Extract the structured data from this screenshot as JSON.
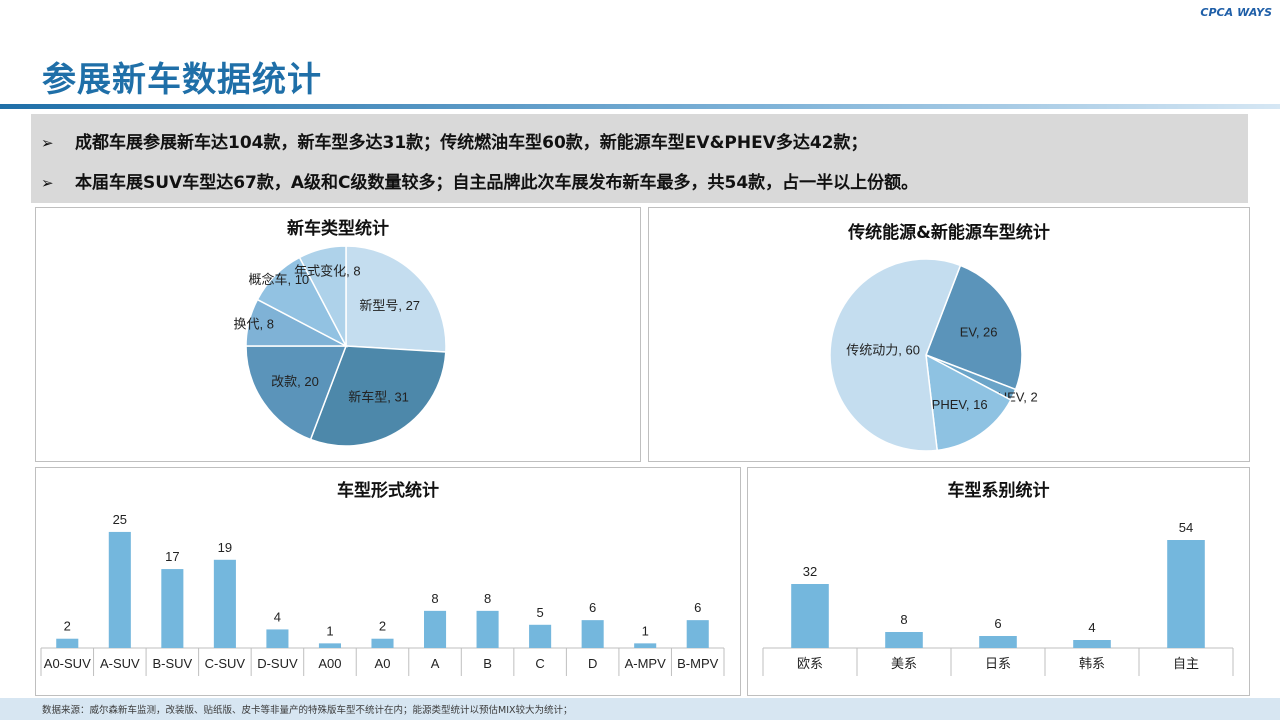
{
  "logo": {
    "cpca": "CPCA",
    "ways": "WAYS"
  },
  "page_title": "参展新车数据统计",
  "summary": [
    "成都车展参展新车达104款，新车型多达31款；传统燃油车型60款，新能源车型EV&PHEV多达42款；",
    "本届车展SUV车型达67款，A级和C级数量较多；自主品牌此次车展发布新车最多，共54款，占一半以上份额。"
  ],
  "footer": "数据来源：威尔森新车监测，改装版、贴纸版、皮卡等非量产的特殊版车型不统计在内；能源类型统计以预估MIX较大为统计；",
  "colors": {
    "title": "#1f6fa8",
    "bar": "#74b7dd",
    "pie": [
      "#c4ddef",
      "#4d88aa",
      "#5b94ba",
      "#7fb2d6",
      "#92c2e2",
      "#aed2ea"
    ]
  },
  "chart_data": [
    {
      "type": "pie",
      "title": "新车类型统计",
      "labels": [
        "新型号",
        "新车型",
        "改款",
        "换代",
        "概念车",
        "年式变化"
      ],
      "values": [
        27,
        31,
        20,
        8,
        10,
        8
      ]
    },
    {
      "type": "pie",
      "title": "传统能源&新能源车型统计",
      "labels": [
        "EV",
        "HEV",
        "PHEV",
        "传统动力"
      ],
      "values": [
        26,
        2,
        16,
        60
      ]
    },
    {
      "type": "bar",
      "title": "车型形式统计",
      "categories": [
        "A0-SUV",
        "A-SUV",
        "B-SUV",
        "C-SUV",
        "D-SUV",
        "A00",
        "A0",
        "A",
        "B",
        "C",
        "D",
        "A-MPV",
        "B-MPV"
      ],
      "values": [
        2,
        25,
        17,
        19,
        4,
        1,
        2,
        8,
        8,
        5,
        6,
        1,
        6
      ],
      "ylim": [
        0,
        28
      ],
      "data_labels": true,
      "grid": false
    },
    {
      "type": "bar",
      "title": "车型系别统计",
      "categories": [
        "欧系",
        "美系",
        "日系",
        "韩系",
        "自主"
      ],
      "values": [
        32,
        8,
        6,
        4,
        54
      ],
      "ylim": [
        0,
        60
      ],
      "data_labels": true,
      "grid": false
    }
  ]
}
